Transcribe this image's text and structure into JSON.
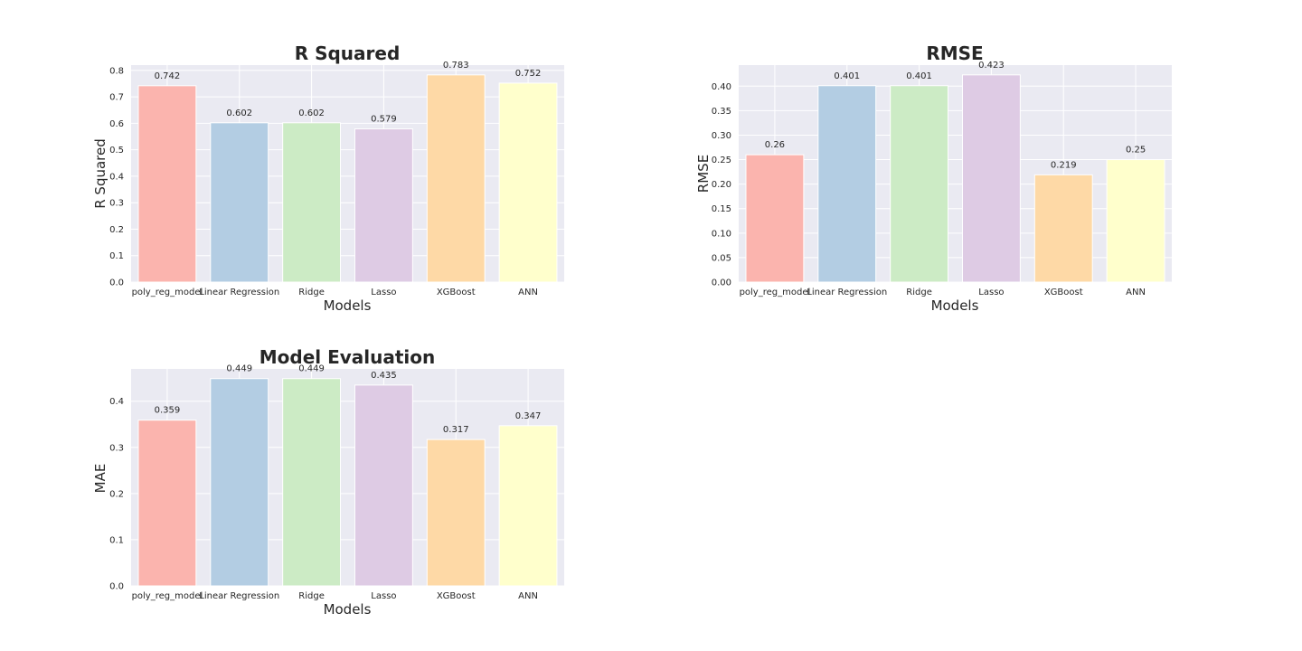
{
  "chart_data": [
    {
      "type": "bar",
      "title": "R Squared",
      "xlabel": "Models",
      "ylabel": "R Squared",
      "categories": [
        "poly_reg_model",
        "Linear Regression",
        "Ridge",
        "Lasso",
        "XGBoost",
        "ANN"
      ],
      "values": [
        0.742,
        0.602,
        0.602,
        0.579,
        0.783,
        0.752
      ],
      "value_labels": [
        "0.742",
        "0.602",
        "0.602",
        "0.579",
        "0.783",
        "0.752"
      ],
      "ylim": [
        0,
        0.82
      ],
      "yticks": [
        0.0,
        0.1,
        0.2,
        0.3,
        0.4,
        0.5,
        0.6,
        0.7,
        0.8
      ],
      "ytick_labels": [
        "0.0",
        "0.1",
        "0.2",
        "0.3",
        "0.4",
        "0.5",
        "0.6",
        "0.7",
        "0.8"
      ],
      "grid": true
    },
    {
      "type": "bar",
      "title": "RMSE",
      "xlabel": "Models",
      "ylabel": "RMSE",
      "categories": [
        "poly_reg_model",
        "Linear Regression",
        "Ridge",
        "Lasso",
        "XGBoost",
        "ANN"
      ],
      "values": [
        0.26,
        0.401,
        0.401,
        0.423,
        0.219,
        0.25
      ],
      "value_labels": [
        "0.26",
        "0.401",
        "0.401",
        "0.423",
        "0.219",
        "0.25"
      ],
      "ylim": [
        0,
        0.443
      ],
      "yticks": [
        0.0,
        0.05,
        0.1,
        0.15,
        0.2,
        0.25,
        0.3,
        0.35,
        0.4
      ],
      "ytick_labels": [
        "0.00",
        "0.05",
        "0.10",
        "0.15",
        "0.20",
        "0.25",
        "0.30",
        "0.35",
        "0.40"
      ],
      "grid": true
    },
    {
      "type": "bar",
      "title": "Model Evaluation",
      "xlabel": "Models",
      "ylabel": "MAE",
      "categories": [
        "poly_reg_model",
        "Linear Regression",
        "Ridge",
        "Lasso",
        "XGBoost",
        "ANN"
      ],
      "values": [
        0.359,
        0.449,
        0.449,
        0.435,
        0.317,
        0.347
      ],
      "value_labels": [
        "0.359",
        "0.449",
        "0.449",
        "0.435",
        "0.317",
        "0.347"
      ],
      "ylim": [
        0,
        0.47
      ],
      "yticks": [
        0.0,
        0.1,
        0.2,
        0.3,
        0.4
      ],
      "ytick_labels": [
        "0.0",
        "0.1",
        "0.2",
        "0.3",
        "0.4"
      ],
      "grid": true
    }
  ],
  "colors": [
    "#fbb4ae",
    "#b3cde3",
    "#ccebc5",
    "#decbe4",
    "#fed9a6",
    "#ffffcc"
  ]
}
